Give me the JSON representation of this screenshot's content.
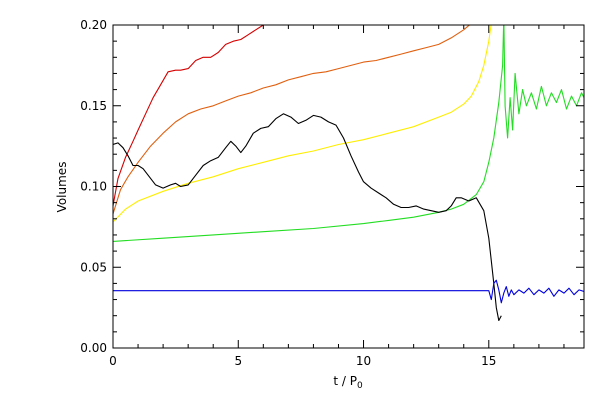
{
  "chart_data": {
    "type": "line",
    "xlabel": "t / P",
    "xlabel_sub": "0",
    "ylabel": "Volumes",
    "xlim": [
      0,
      18.8
    ],
    "ylim": [
      0.0,
      0.2
    ],
    "x_ticks": [
      0,
      5,
      10,
      15
    ],
    "x_tick_labels": [
      "0",
      "5",
      "10",
      "15"
    ],
    "y_ticks": [
      0.0,
      0.05,
      0.1,
      0.15,
      0.2
    ],
    "y_tick_labels": [
      "0.00",
      "0.05",
      "0.10",
      "0.15",
      "0.20"
    ],
    "grid": false,
    "series": [
      {
        "color": "#d40000",
        "x": [
          0,
          0.2,
          0.5,
          0.8,
          1.0,
          1.3,
          1.6,
          1.9,
          2.2,
          2.5,
          2.7,
          3.0,
          3.3,
          3.6,
          3.9,
          4.2,
          4.5,
          4.8,
          5.1,
          5.4,
          5.7,
          6.0,
          6.1
        ],
        "y": [
          0.088,
          0.105,
          0.118,
          0.128,
          0.135,
          0.145,
          0.155,
          0.163,
          0.171,
          0.172,
          0.172,
          0.173,
          0.178,
          0.18,
          0.18,
          0.183,
          0.188,
          0.19,
          0.191,
          0.194,
          0.197,
          0.2,
          0.201
        ]
      },
      {
        "color": "#e06010",
        "x": [
          0,
          0.3,
          0.6,
          1.0,
          1.5,
          2.0,
          2.5,
          3.0,
          3.5,
          4.0,
          4.5,
          5.0,
          5.5,
          6.0,
          6.5,
          7.0,
          7.5,
          8.0,
          8.5,
          9.0,
          9.5,
          10.0,
          10.5,
          11.0,
          11.5,
          12.0,
          12.5,
          13.0,
          13.5,
          14.0,
          14.3
        ],
        "y": [
          0.083,
          0.098,
          0.106,
          0.115,
          0.125,
          0.133,
          0.14,
          0.145,
          0.148,
          0.15,
          0.153,
          0.156,
          0.158,
          0.161,
          0.163,
          0.166,
          0.168,
          0.17,
          0.171,
          0.173,
          0.175,
          0.177,
          0.178,
          0.18,
          0.182,
          0.184,
          0.186,
          0.188,
          0.192,
          0.197,
          0.201
        ]
      },
      {
        "color": "#ffee00",
        "x": [
          0,
          0.5,
          1.0,
          2.0,
          3.0,
          4.0,
          5.0,
          6.0,
          7.0,
          8.0,
          9.0,
          10.0,
          11.0,
          12.0,
          13.0,
          13.5,
          14.0,
          14.3,
          14.6,
          14.8,
          15.0,
          15.1
        ],
        "y": [
          0.078,
          0.086,
          0.091,
          0.097,
          0.102,
          0.106,
          0.111,
          0.115,
          0.119,
          0.122,
          0.126,
          0.129,
          0.133,
          0.137,
          0.143,
          0.146,
          0.151,
          0.156,
          0.165,
          0.175,
          0.19,
          0.201
        ]
      },
      {
        "color": "#22dd22",
        "x": [
          0,
          2,
          4,
          6,
          8,
          10,
          11,
          12,
          13,
          13.5,
          14.0,
          14.5,
          14.8,
          15.0,
          15.2,
          15.4,
          15.55,
          15.6,
          15.65,
          15.75,
          15.85,
          15.95,
          16.05,
          16.2,
          16.35,
          16.5,
          16.7,
          16.9,
          17.1,
          17.3,
          17.5,
          17.7,
          17.9,
          18.1,
          18.3,
          18.5,
          18.7,
          18.8
        ],
        "y": [
          0.066,
          0.068,
          0.07,
          0.072,
          0.074,
          0.077,
          0.079,
          0.081,
          0.084,
          0.086,
          0.089,
          0.095,
          0.103,
          0.115,
          0.13,
          0.152,
          0.175,
          0.205,
          0.15,
          0.13,
          0.155,
          0.135,
          0.17,
          0.145,
          0.16,
          0.15,
          0.158,
          0.148,
          0.162,
          0.15,
          0.158,
          0.152,
          0.16,
          0.148,
          0.156,
          0.15,
          0.158,
          0.155
        ]
      },
      {
        "color": "#000000",
        "x": [
          0,
          0.2,
          0.4,
          0.6,
          0.8,
          1.0,
          1.2,
          1.4,
          1.7,
          2.0,
          2.3,
          2.5,
          2.7,
          3.0,
          3.3,
          3.6,
          3.9,
          4.2,
          4.5,
          4.7,
          4.9,
          5.1,
          5.3,
          5.6,
          5.9,
          6.2,
          6.5,
          6.8,
          7.1,
          7.4,
          7.7,
          8.0,
          8.3,
          8.6,
          8.9,
          9.2,
          9.5,
          9.8,
          10.0,
          10.3,
          10.6,
          10.9,
          11.2,
          11.5,
          11.8,
          12.1,
          12.4,
          12.7,
          13.0,
          13.3,
          13.5,
          13.7,
          13.9,
          14.2,
          14.5,
          14.8,
          15.0,
          15.2,
          15.3,
          15.4,
          15.5
        ],
        "y": [
          0.126,
          0.127,
          0.124,
          0.119,
          0.113,
          0.113,
          0.111,
          0.107,
          0.101,
          0.099,
          0.101,
          0.102,
          0.1,
          0.101,
          0.107,
          0.113,
          0.116,
          0.118,
          0.124,
          0.128,
          0.125,
          0.121,
          0.125,
          0.133,
          0.136,
          0.137,
          0.142,
          0.145,
          0.143,
          0.139,
          0.141,
          0.144,
          0.143,
          0.14,
          0.138,
          0.13,
          0.119,
          0.109,
          0.103,
          0.099,
          0.096,
          0.093,
          0.089,
          0.087,
          0.087,
          0.088,
          0.086,
          0.085,
          0.084,
          0.085,
          0.088,
          0.093,
          0.093,
          0.091,
          0.093,
          0.085,
          0.068,
          0.04,
          0.025,
          0.017,
          0.02
        ]
      },
      {
        "color": "#0000dd",
        "x": [
          0,
          2,
          4,
          6,
          8,
          10,
          12,
          14,
          15.0,
          15.1,
          15.2,
          15.3,
          15.4,
          15.5,
          15.6,
          15.7,
          15.8,
          15.9,
          16.0,
          16.2,
          16.4,
          16.6,
          16.8,
          17.0,
          17.2,
          17.4,
          17.6,
          17.8,
          18.0,
          18.2,
          18.4,
          18.6,
          18.8
        ],
        "y": [
          0.0355,
          0.0355,
          0.0355,
          0.0355,
          0.0355,
          0.0355,
          0.0355,
          0.0355,
          0.0355,
          0.03,
          0.04,
          0.042,
          0.036,
          0.028,
          0.034,
          0.038,
          0.032,
          0.036,
          0.033,
          0.036,
          0.034,
          0.037,
          0.033,
          0.036,
          0.034,
          0.037,
          0.032,
          0.036,
          0.034,
          0.037,
          0.033,
          0.036,
          0.035
        ]
      }
    ]
  }
}
